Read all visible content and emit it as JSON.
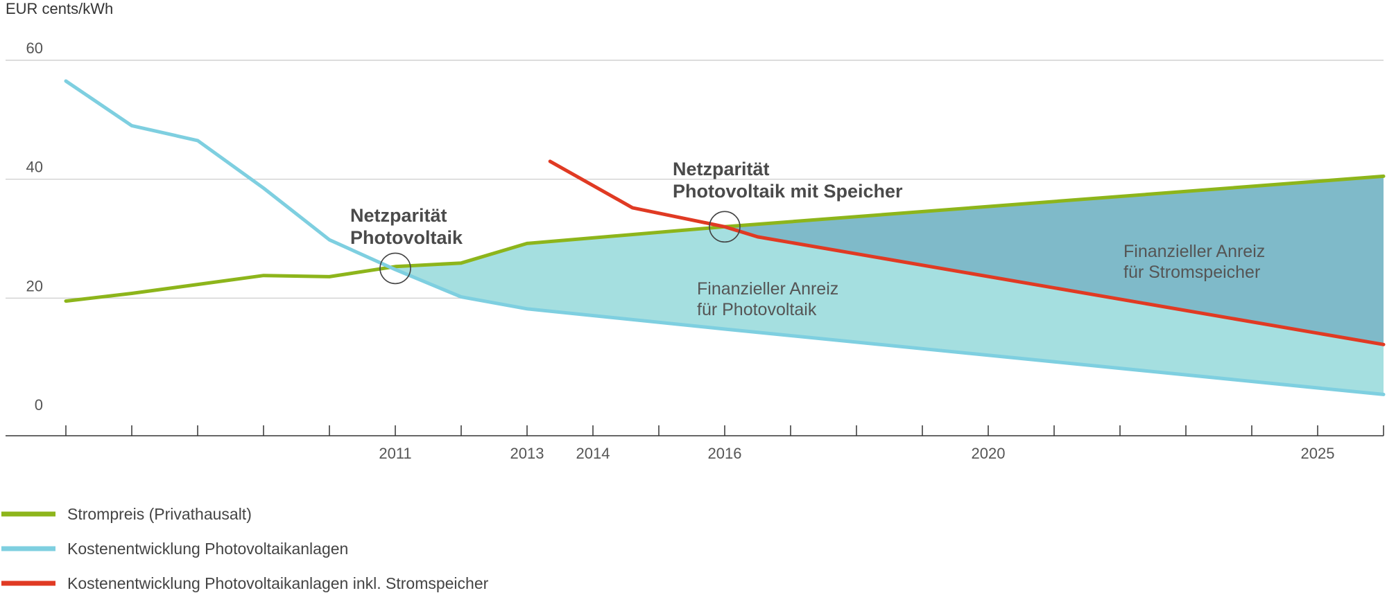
{
  "chart_data": {
    "type": "line",
    "ylabel": "EUR cents/kWh",
    "ylim": [
      0,
      60
    ],
    "y_ticks": [
      "0",
      "20",
      "40",
      "60"
    ],
    "x_range": [
      2006,
      2026
    ],
    "x_tick_positions": [
      2006,
      2007,
      2008,
      2009,
      2010,
      2011,
      2012,
      2013,
      2014,
      2015,
      2016,
      2017,
      2018,
      2019,
      2020,
      2021,
      2022,
      2023,
      2024,
      2025,
      2026
    ],
    "x_tick_labels": [
      {
        "x": 2011,
        "label": "2011"
      },
      {
        "x": 2013,
        "label": "2013"
      },
      {
        "x": 2014,
        "label": "2014"
      },
      {
        "x": 2016,
        "label": "2016"
      },
      {
        "x": 2020,
        "label": "2020"
      },
      {
        "x": 2025,
        "label": "2025"
      }
    ],
    "grid": true,
    "series": [
      {
        "key": "strompreis",
        "name": "Strompreis (Privathausalt)",
        "color": "#8db51b",
        "points": [
          [
            2006,
            19.5
          ],
          [
            2007,
            20.8
          ],
          [
            2008,
            22.3
          ],
          [
            2009,
            23.8
          ],
          [
            2010,
            23.6
          ],
          [
            2011,
            25.3
          ],
          [
            2012,
            25.9
          ],
          [
            2013,
            29.2
          ],
          [
            2016,
            32.0
          ],
          [
            2026,
            40.5
          ]
        ]
      },
      {
        "key": "photovoltaik",
        "name": "Kostenentwicklung Photovoltaikanlagen",
        "color": "#7ecfe0",
        "points": [
          [
            2006,
            56.5
          ],
          [
            2007,
            49.0
          ],
          [
            2008,
            46.5
          ],
          [
            2009,
            38.5
          ],
          [
            2010,
            29.8
          ],
          [
            2011,
            24.8
          ],
          [
            2012,
            20.2
          ],
          [
            2013,
            18.2
          ],
          [
            2016,
            14.8
          ],
          [
            2026,
            3.8
          ]
        ]
      },
      {
        "key": "speicher",
        "name": "Kostenentwicklung Photovoltaikanlagen inkl. Stromspeicher",
        "color": "#e03a23",
        "points": [
          [
            2013.35,
            43.0
          ],
          [
            2014.6,
            35.2
          ],
          [
            2016.0,
            32.0
          ],
          [
            2016.5,
            30.3
          ],
          [
            2026,
            12.2
          ]
        ]
      }
    ],
    "areas": [
      {
        "key": "anreiz_pv",
        "label": "Finanzieller Anreiz für Photovoltaik",
        "color": "#a5dfe0",
        "between": [
          "strompreis",
          "photovoltaik"
        ],
        "from": 2011
      },
      {
        "key": "anreiz_speicher",
        "label": "Finanzieller Anreiz für Stromspeicher",
        "color": "#7fbac9",
        "between": [
          "strompreis",
          "speicher"
        ],
        "from": 2016
      }
    ],
    "annotations": [
      {
        "key": "netz_pv",
        "lines": [
          "Netzparität",
          "Photovoltaik"
        ],
        "x": 2011,
        "y": 25.0
      },
      {
        "key": "netz_speicher",
        "lines": [
          "Netzparität",
          "Photovoltaik mit Speicher"
        ],
        "x": 2016,
        "y": 32.0
      }
    ],
    "area_labels": {
      "pv": [
        "Finanzieller Anreiz",
        "für Photovoltaik"
      ],
      "speicher": [
        "Finanzieller Anreiz",
        "für Stromspeicher"
      ]
    },
    "legend_position": "bottom-left",
    "colors": {
      "grid": "#c8c8c8",
      "axis": "#333333",
      "text": "#555555"
    }
  }
}
